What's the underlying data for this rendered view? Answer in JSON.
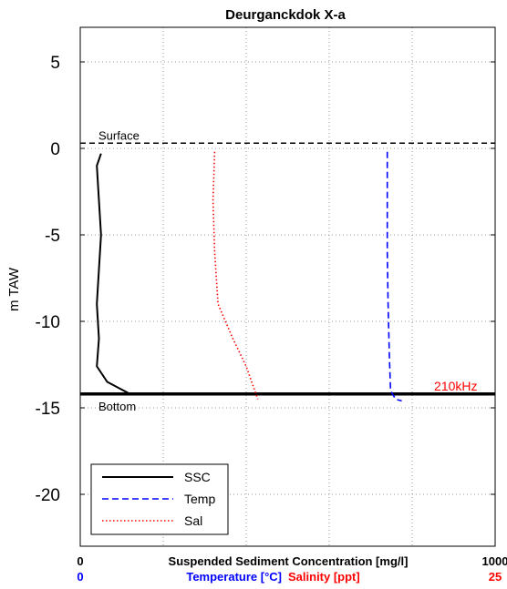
{
  "chart_data": {
    "type": "line",
    "title": "Deurganckdok X-a",
    "ylabel": "m TAW",
    "ylim": [
      -23,
      7
    ],
    "yticks": [
      5,
      0,
      -5,
      -10,
      -15,
      -20
    ],
    "grid": true,
    "legend_position": "bottom-left",
    "x_axes": [
      {
        "name": "ssc",
        "label": "Suspended Sediment Concentration [mg/l]",
        "min": 0,
        "max": 1000,
        "min_label": "0",
        "max_label": "1000",
        "color": "#000000"
      },
      {
        "name": "temp",
        "label": "Temperature [°C]",
        "min": 0,
        "min_label": "0",
        "color": "#0000ff"
      },
      {
        "name": "sal",
        "label": "Salinity [ppt]",
        "max": 25,
        "max_label": "25",
        "color": "#ff0000"
      }
    ],
    "series": [
      {
        "name": "SSC",
        "color": "#000000",
        "style": "solid",
        "points": [
          [
            50,
            -0.3
          ],
          [
            40,
            -1
          ],
          [
            45,
            -3
          ],
          [
            50,
            -5
          ],
          [
            45,
            -7
          ],
          [
            40,
            -9
          ],
          [
            45,
            -11
          ],
          [
            40,
            -12.6
          ],
          [
            65,
            -13.5
          ],
          [
            120,
            -14.2
          ]
        ]
      },
      {
        "name": "Temp",
        "color": "#0000ff",
        "style": "dashed",
        "points": [
          [
            740,
            -0.2
          ],
          [
            740,
            -3
          ],
          [
            740,
            -6
          ],
          [
            742,
            -9
          ],
          [
            745,
            -12
          ],
          [
            748,
            -14
          ],
          [
            760,
            -14.5
          ],
          [
            775,
            -14.6
          ]
        ]
      },
      {
        "name": "Sal",
        "color": "#ff0000",
        "style": "dotted",
        "points": [
          [
            8.1,
            -0.2
          ],
          [
            8.0,
            -3
          ],
          [
            8.1,
            -6
          ],
          [
            8.3,
            -9
          ],
          [
            9.2,
            -11
          ],
          [
            10.0,
            -12.6
          ],
          [
            10.7,
            -14.5
          ]
        ]
      }
    ],
    "reference_lines": [
      {
        "label": "Surface",
        "y": 0.3,
        "style": "dashed"
      },
      {
        "label": "Bottom",
        "y": -14.2,
        "style": "solid"
      }
    ],
    "annotations": [
      {
        "text": "210kHz",
        "x": 905,
        "y": -14.2,
        "color": "#ff0000"
      }
    ]
  }
}
